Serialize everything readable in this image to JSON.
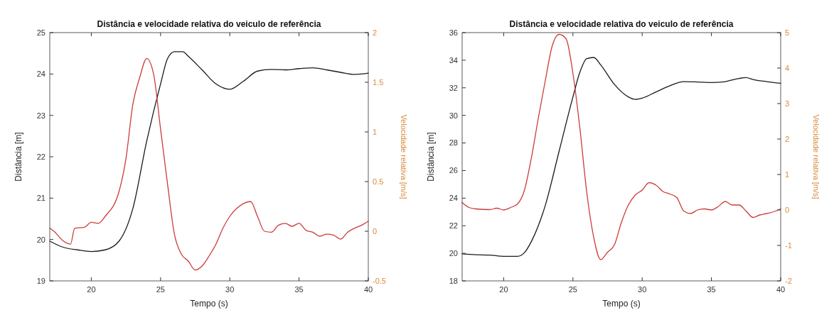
{
  "chart_data": [
    {
      "type": "line",
      "title": "Distância e velocidade relativa do veiculo de referência",
      "xlabel": "Tempo (s)",
      "ylabel": "Distância [m]",
      "y2label": "Velocidade relativa [m/s]",
      "xlim": [
        17,
        40
      ],
      "xticks": [
        20,
        25,
        30,
        35,
        40
      ],
      "ylim": [
        19,
        25
      ],
      "yticks": [
        19,
        20,
        21,
        22,
        23,
        24,
        25
      ],
      "y2lim": [
        -0.5,
        2
      ],
      "y2ticks": [
        -0.5,
        0,
        0.5,
        1,
        1.5,
        2
      ],
      "grid": false,
      "series": [
        {
          "color": "#1a1a1a",
          "x": [
            17,
            18,
            19,
            20,
            21,
            22,
            23,
            24,
            25,
            25.5,
            26,
            26.6,
            27,
            28,
            29,
            30,
            31,
            32,
            33,
            34,
            35,
            36,
            37,
            38,
            39,
            40
          ],
          "values": [
            19.96,
            19.81,
            19.75,
            19.71,
            19.75,
            19.96,
            20.75,
            22.38,
            23.76,
            24.37,
            24.54,
            24.54,
            24.43,
            24.1,
            23.76,
            23.63,
            23.83,
            24.07,
            24.11,
            24.1,
            24.13,
            24.15,
            24.1,
            24.04,
            23.99,
            24.02
          ]
        },
        {
          "color": "#cc3b3b",
          "axis": "y2",
          "x": [
            17,
            17.3,
            18,
            18.5,
            18.8,
            19.5,
            20,
            20.5,
            21,
            22,
            22.5,
            23,
            23.5,
            24,
            24.5,
            25,
            25.5,
            26,
            26.5,
            27,
            27.5,
            28,
            28.5,
            29,
            29.5,
            30,
            30.5,
            31,
            31.5,
            32,
            32.5,
            33,
            33.5,
            34,
            34.5,
            35,
            35.5,
            36,
            36.5,
            37,
            37.5,
            38,
            38.5,
            39,
            39.5,
            40
          ],
          "values": [
            0.03,
            0,
            -0.1,
            -0.13,
            0.03,
            0.04,
            0.09,
            0.08,
            0.15,
            0.4,
            0.73,
            1.28,
            1.55,
            1.74,
            1.58,
            1.03,
            0.48,
            -0.03,
            -0.23,
            -0.3,
            -0.39,
            -0.35,
            -0.25,
            -0.13,
            0.03,
            0.15,
            0.23,
            0.28,
            0.3,
            0.15,
            0,
            -0.01,
            0.06,
            0.08,
            0.05,
            0.08,
            0.01,
            -0.01,
            -0.05,
            -0.03,
            -0.04,
            -0.08,
            -0.01,
            0.03,
            0.06,
            0.1
          ]
        }
      ]
    },
    {
      "type": "line",
      "title": "Distância e velocidade relativa do veiculo de referência",
      "xlabel": "Tempo (s)",
      "ylabel": "Distância [m]",
      "y2label": "Velocidade relativa [m/s]",
      "xlim": [
        17,
        40
      ],
      "xticks": [
        20,
        25,
        30,
        35,
        40
      ],
      "ylim": [
        18,
        36
      ],
      "yticks": [
        18,
        20,
        22,
        24,
        26,
        28,
        30,
        32,
        34,
        36
      ],
      "y2lim": [
        -2,
        5
      ],
      "y2ticks": [
        -2,
        -1,
        0,
        1,
        2,
        3,
        4,
        5
      ],
      "grid": false,
      "series": [
        {
          "color": "#1a1a1a",
          "x": [
            17,
            18,
            19,
            20,
            21,
            21.5,
            22,
            23,
            24,
            25,
            25.5,
            26,
            26.5,
            27,
            28,
            29,
            29.5,
            30,
            31,
            32,
            33,
            34,
            35,
            36,
            37,
            37.5,
            38,
            39,
            40
          ],
          "values": [
            19.96,
            19.9,
            19.87,
            19.78,
            19.78,
            20.05,
            20.86,
            23.46,
            27.4,
            31.34,
            33.13,
            34.12,
            34.2,
            33.67,
            32.24,
            31.34,
            31.16,
            31.25,
            31.7,
            32.15,
            32.45,
            32.42,
            32.38,
            32.45,
            32.68,
            32.74,
            32.6,
            32.45,
            32.33
          ]
        },
        {
          "color": "#cc3b3b",
          "axis": "y2",
          "x": [
            17,
            17.5,
            18,
            19,
            19.5,
            20,
            20.5,
            21,
            21.5,
            22,
            22.5,
            23,
            23.5,
            24,
            24.5,
            25,
            25.5,
            26,
            26.5,
            27,
            27.5,
            28,
            28.5,
            29,
            29.5,
            30,
            30.5,
            31,
            31.5,
            32,
            32.5,
            33,
            33.5,
            34,
            34.5,
            35,
            35.5,
            36,
            36.5,
            37,
            37.5,
            38,
            38.5,
            39,
            39.5,
            40
          ],
          "values": [
            0.21,
            0.07,
            0.03,
            0.01,
            0.05,
            0,
            0.07,
            0.17,
            0.56,
            1.47,
            2.59,
            3.64,
            4.62,
            4.95,
            4.83,
            3.85,
            2.31,
            0.49,
            -0.77,
            -1.4,
            -1.19,
            -0.98,
            -0.35,
            0.14,
            0.42,
            0.56,
            0.77,
            0.7,
            0.52,
            0.45,
            0.35,
            -0.03,
            -0.1,
            0,
            0.03,
            0,
            0.1,
            0.24,
            0.14,
            0.14,
            -0.03,
            -0.21,
            -0.14,
            -0.1,
            -0.05,
            0.03
          ]
        }
      ]
    }
  ]
}
